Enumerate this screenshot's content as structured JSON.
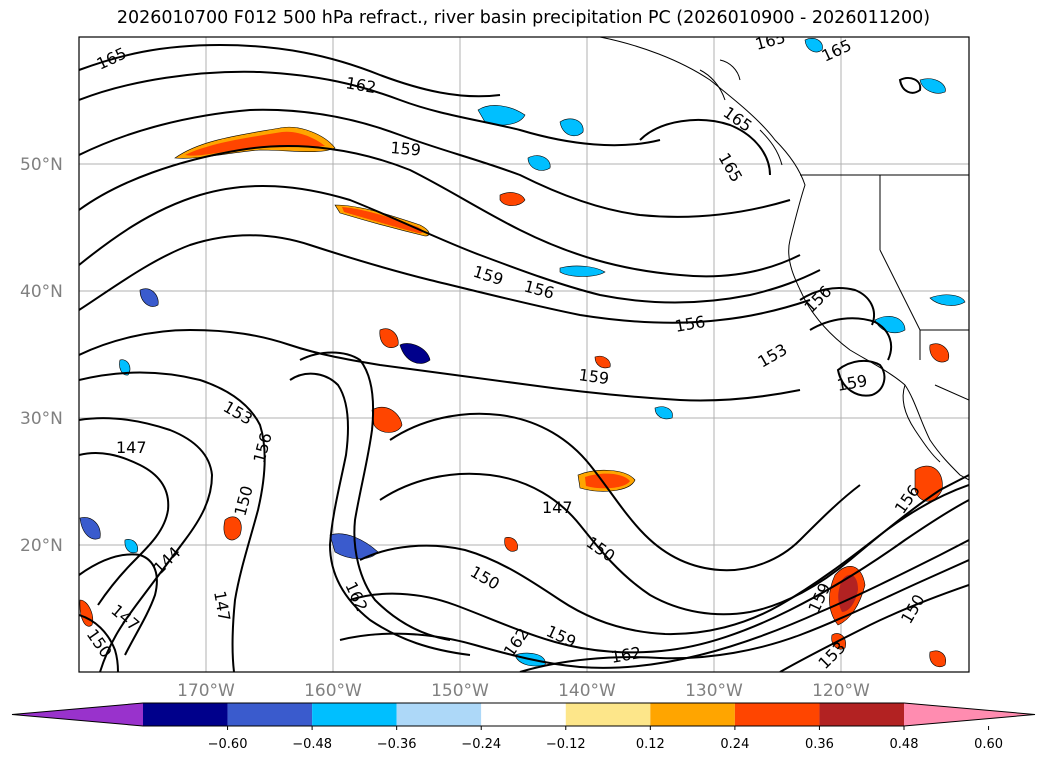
{
  "title": "2026010700 F012 500 hPa refract., river basin precipitation PC (2026010900 - 2026011200)",
  "map": {
    "lat_labels": [
      "50°N",
      "40°N",
      "30°N",
      "20°N"
    ],
    "lon_labels": [
      "170°W",
      "160°W",
      "150°W",
      "140°W",
      "130°W",
      "120°W"
    ],
    "contour_labels": [
      {
        "text": "165"
      },
      {
        "text": "162"
      },
      {
        "text": "159"
      },
      {
        "text": "165"
      },
      {
        "text": "165"
      },
      {
        "text": "165"
      },
      {
        "text": "165"
      },
      {
        "text": "159"
      },
      {
        "text": "156"
      },
      {
        "text": "156"
      },
      {
        "text": "156"
      },
      {
        "text": "153"
      },
      {
        "text": "159"
      },
      {
        "text": "159"
      },
      {
        "text": "153"
      },
      {
        "text": "147"
      },
      {
        "text": "156"
      },
      {
        "text": "150"
      },
      {
        "text": "144"
      },
      {
        "text": "147"
      },
      {
        "text": "150"
      },
      {
        "text": "147"
      },
      {
        "text": "162"
      },
      {
        "text": "147"
      },
      {
        "text": "150"
      },
      {
        "text": "150"
      },
      {
        "text": "162"
      },
      {
        "text": "159"
      },
      {
        "text": "162"
      },
      {
        "text": "159"
      },
      {
        "text": "153"
      },
      {
        "text": "150"
      },
      {
        "text": "156"
      }
    ]
  },
  "colorbar": {
    "colors": [
      "#9932cc",
      "#00008b",
      "#3a5bcd",
      "#00bfff",
      "#add8f8",
      "#ffffff",
      "#fde68a",
      "#ffa500",
      "#ff4500",
      "#b22222",
      "#ff8cb0"
    ],
    "ticks": [
      "−0.60",
      "−0.48",
      "−0.36",
      "−0.24",
      "−0.12",
      "0.12",
      "0.24",
      "0.36",
      "0.48",
      "0.60"
    ]
  }
}
